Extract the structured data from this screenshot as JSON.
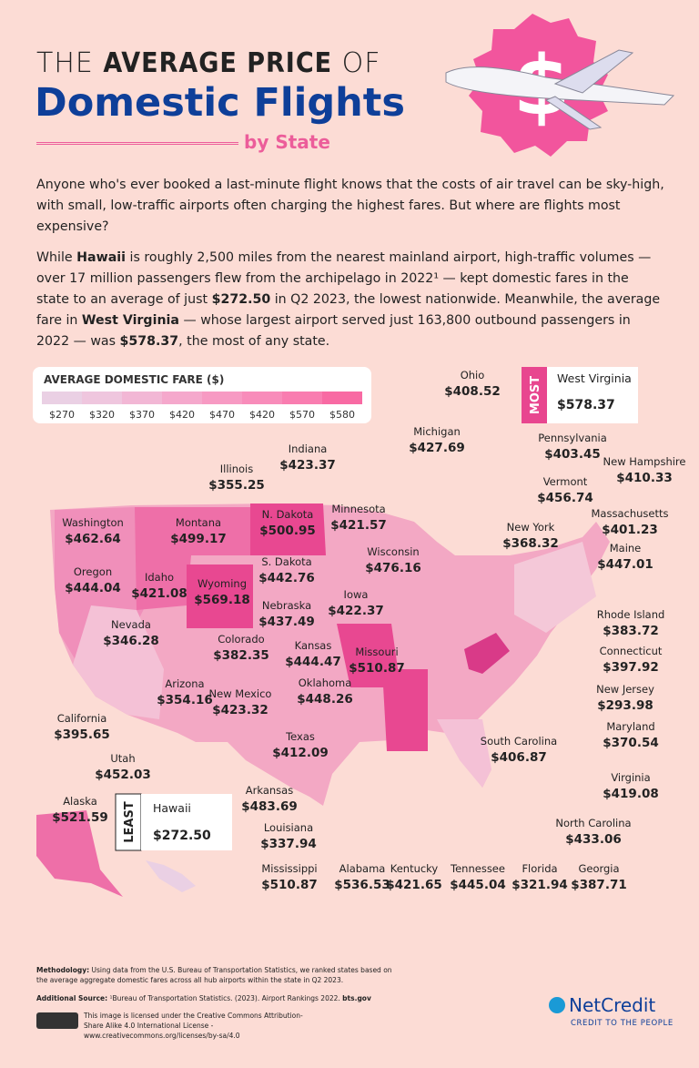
{
  "header": {
    "title_line1": {
      "pre": "THE",
      "bold": "AVERAGE PRICE",
      "post": "OF"
    },
    "title_line2": "Domestic Flights",
    "subtitle": "by State"
  },
  "intro": {
    "paragraphs": [
      {
        "runs": [
          {
            "text": "Anyone who's ever booked a last-minute flight knows that the costs of air travel can be sky-high, with small, low-traffic airports often charging the highest fares. But where are flights most expensive?",
            "bold": false
          }
        ]
      },
      {
        "runs": [
          {
            "text": "While ",
            "bold": false
          },
          {
            "text": "Hawaii",
            "bold": true
          },
          {
            "text": " is roughly 2,500 miles from the nearest mainland airport, high-traffic volumes — over 17 million passengers flew from the archipelago in 2022¹ — kept domestic fares in the state to an average of just ",
            "bold": false
          },
          {
            "text": "$272.50",
            "bold": true
          },
          {
            "text": " in Q2 2023, the lowest nationwide. Meanwhile, the average fare in ",
            "bold": false
          },
          {
            "text": "West Virginia",
            "bold": true
          },
          {
            "text": " — whose largest airport served just 163,800 outbound passengers in 2022 — was ",
            "bold": false
          },
          {
            "text": "$578.37",
            "bold": true
          },
          {
            "text": ", the most of any state.",
            "bold": false
          }
        ]
      }
    ]
  },
  "legend": {
    "title": "AVERAGE DOMESTIC FARE ($)",
    "labels": [
      "$270",
      "$320",
      "$370",
      "$420",
      "$470",
      "$420",
      "$570",
      "$580"
    ],
    "colors": [
      "#ead0e4",
      "#efc6de",
      "#f2b7d5",
      "#f5a8cc",
      "#f79ac3",
      "#f88cba",
      "#f97db0",
      "#f86aa3"
    ]
  },
  "callouts": {
    "most": {
      "tag": "MOST",
      "state": "West Virginia",
      "fare": "$578.37"
    },
    "least": {
      "tag": "LEAST",
      "state": "Hawaii",
      "fare": "$272.50"
    }
  },
  "states": [
    {
      "name": "Washington",
      "fare": "$462.64"
    },
    {
      "name": "Oregon",
      "fare": "$444.04"
    },
    {
      "name": "Idaho",
      "fare": "$421.08"
    },
    {
      "name": "Montana",
      "fare": "$499.17"
    },
    {
      "name": "Wyoming",
      "fare": "$569.18"
    },
    {
      "name": "Nevada",
      "fare": "$346.28"
    },
    {
      "name": "California",
      "fare": "$395.65"
    },
    {
      "name": "Utah",
      "fare": "$452.03"
    },
    {
      "name": "Arizona",
      "fare": "$354.16"
    },
    {
      "name": "Colorado",
      "fare": "$382.35"
    },
    {
      "name": "New Mexico",
      "fare": "$423.32"
    },
    {
      "name": "N. Dakota",
      "fare": "$500.95"
    },
    {
      "name": "S. Dakota",
      "fare": "$442.76"
    },
    {
      "name": "Nebraska",
      "fare": "$437.49"
    },
    {
      "name": "Kansas",
      "fare": "$444.47"
    },
    {
      "name": "Oklahoma",
      "fare": "$448.26"
    },
    {
      "name": "Texas",
      "fare": "$412.09"
    },
    {
      "name": "Minnesota",
      "fare": "$421.57"
    },
    {
      "name": "Iowa",
      "fare": "$422.37"
    },
    {
      "name": "Missouri",
      "fare": "$510.87"
    },
    {
      "name": "Wisconsin",
      "fare": "$476.16"
    },
    {
      "name": "Illinois",
      "fare": "$355.25"
    },
    {
      "name": "Indiana",
      "fare": "$423.37"
    },
    {
      "name": "Michigan",
      "fare": "$427.69"
    },
    {
      "name": "Ohio",
      "fare": "$408.52"
    },
    {
      "name": "Arkansas",
      "fare": "$483.69"
    },
    {
      "name": "Louisiana",
      "fare": "$337.94"
    },
    {
      "name": "Mississippi",
      "fare": "$510.87"
    },
    {
      "name": "Alabama",
      "fare": "$536.53"
    },
    {
      "name": "Kentucky",
      "fare": "$421.65"
    },
    {
      "name": "Tennessee",
      "fare": "$445.04"
    },
    {
      "name": "Florida",
      "fare": "$321.94"
    },
    {
      "name": "Georgia",
      "fare": "$387.71"
    },
    {
      "name": "North Carolina",
      "fare": "$433.06"
    },
    {
      "name": "South Carolina",
      "fare": "$406.87"
    },
    {
      "name": "Virginia",
      "fare": "$419.08"
    },
    {
      "name": "Maryland",
      "fare": "$370.54"
    },
    {
      "name": "New Jersey",
      "fare": "$293.98"
    },
    {
      "name": "Connecticut",
      "fare": "$397.92"
    },
    {
      "name": "Rhode Island",
      "fare": "$383.72"
    },
    {
      "name": "Maine",
      "fare": "$447.01"
    },
    {
      "name": "Massachusetts",
      "fare": "$401.23"
    },
    {
      "name": "New Hampshire",
      "fare": "$410.33"
    },
    {
      "name": "Vermont",
      "fare": "$456.74"
    },
    {
      "name": "New York",
      "fare": "$368.32"
    },
    {
      "name": "Pennsylvania",
      "fare": "$403.45"
    },
    {
      "name": "Alaska",
      "fare": "$521.59"
    }
  ],
  "footer": {
    "methodology_label": "Methodology:",
    "methodology": "Using data from the U.S. Bureau of Transportation Statistics, we ranked states based on the average aggregate domestic fares across all hub airports within the state in Q2 2023.",
    "source_label": "Additional Source:",
    "source": "¹Bureau of Transportation Statistics. (2023). Airport Rankings 2022.",
    "source_site": "bts.gov",
    "license": "This image is licensed under the Creative Commons Attribution-Share Alike 4.0 International License - www.creativecommons.org/licenses/by-sa/4.0",
    "logo": "NetCredit",
    "tagline": "CREDIT TO THE PEOPLE"
  }
}
